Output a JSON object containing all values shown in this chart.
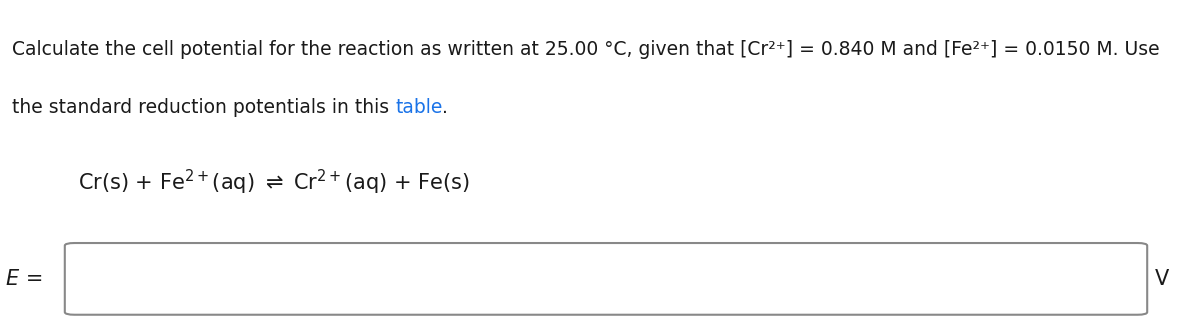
{
  "background_color": "#ffffff",
  "line1": "Calculate the cell potential for the reaction as written at 25.00 °C, given that [Cr²⁺] = 0.840 M and [Fe²⁺] = 0.0150 M. Use",
  "line2_before_link": "the standard reduction potentials in this ",
  "line2_link": "table",
  "line2_after_link": ".",
  "table_link_color": "#1a73e8",
  "e_label": "E =",
  "v_label": "V",
  "text_color": "#1a1a1a",
  "box_edgecolor": "#888888",
  "box_facecolor": "#ffffff",
  "font_size_main": 13.5,
  "font_size_eq": 15,
  "font_size_ev": 15
}
